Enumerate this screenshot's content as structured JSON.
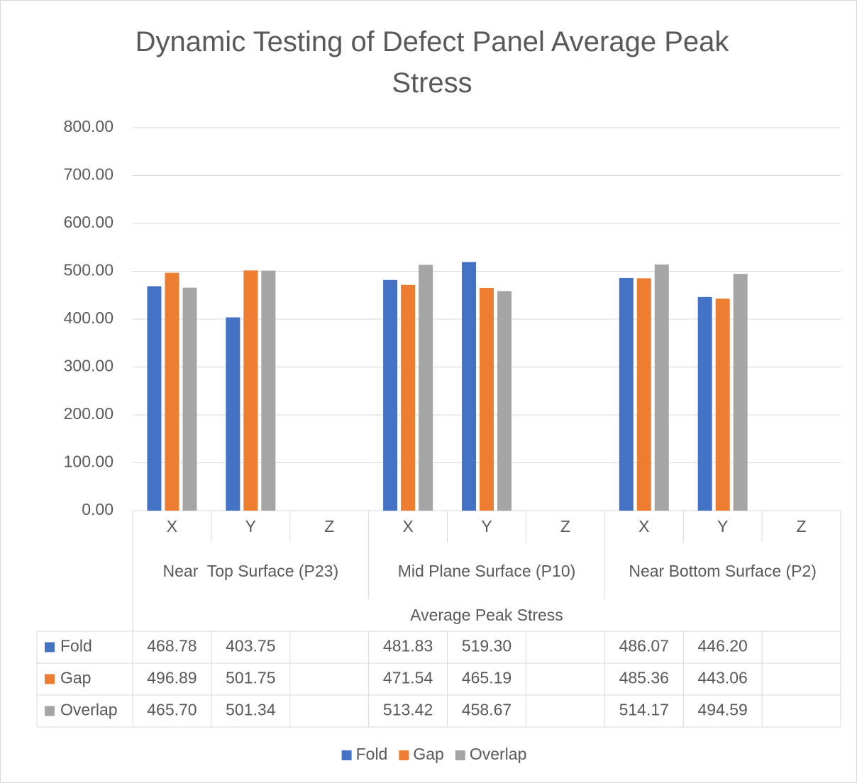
{
  "chart_data": {
    "type": "bar",
    "title": "Dynamic Testing of Defect Panel Average Peak Stress",
    "categories": [
      "X",
      "Y",
      "Z",
      "X",
      "Y",
      "Z",
      "X",
      "Y",
      "Z"
    ],
    "groups": [
      "Near  Top Surface (P23)",
      "Mid Plane Surface (P10)",
      "Near Bottom Surface (P2)"
    ],
    "x_label": "Average Peak Stress",
    "series": [
      {
        "name": "Fold",
        "color": "#4472c4",
        "values": [
          468.78,
          403.75,
          null,
          481.83,
          519.3,
          null,
          486.07,
          446.2,
          null
        ],
        "value_labels": [
          "468.78",
          "403.75",
          null,
          "481.83",
          "519.30",
          null,
          "486.07",
          "446.20",
          null
        ]
      },
      {
        "name": "Gap",
        "color": "#ed7d31",
        "values": [
          496.89,
          501.75,
          null,
          471.54,
          465.19,
          null,
          485.36,
          443.06,
          null
        ],
        "value_labels": [
          "496.89",
          "501.75",
          null,
          "471.54",
          "465.19",
          null,
          "485.36",
          "443.06",
          null
        ]
      },
      {
        "name": "Overlap",
        "color": "#a5a5a5",
        "values": [
          465.7,
          501.34,
          null,
          513.42,
          458.67,
          null,
          514.17,
          494.59,
          null
        ],
        "value_labels": [
          "465.70",
          "501.34",
          null,
          "513.42",
          "458.67",
          null,
          "514.17",
          "494.59",
          null
        ]
      }
    ],
    "ylim": [
      0,
      800
    ],
    "yticks": [
      {
        "value": 0,
        "label": "0.00"
      },
      {
        "value": 100,
        "label": "100.00"
      },
      {
        "value": 200,
        "label": "200.00"
      },
      {
        "value": 300,
        "label": "300.00"
      },
      {
        "value": 400,
        "label": "400.00"
      },
      {
        "value": 500,
        "label": "500.00"
      },
      {
        "value": 600,
        "label": "600.00"
      },
      {
        "value": 700,
        "label": "700.00"
      },
      {
        "value": 800,
        "label": "800.00"
      }
    ],
    "grid": true,
    "legend": "bottom",
    "data_table": true
  }
}
